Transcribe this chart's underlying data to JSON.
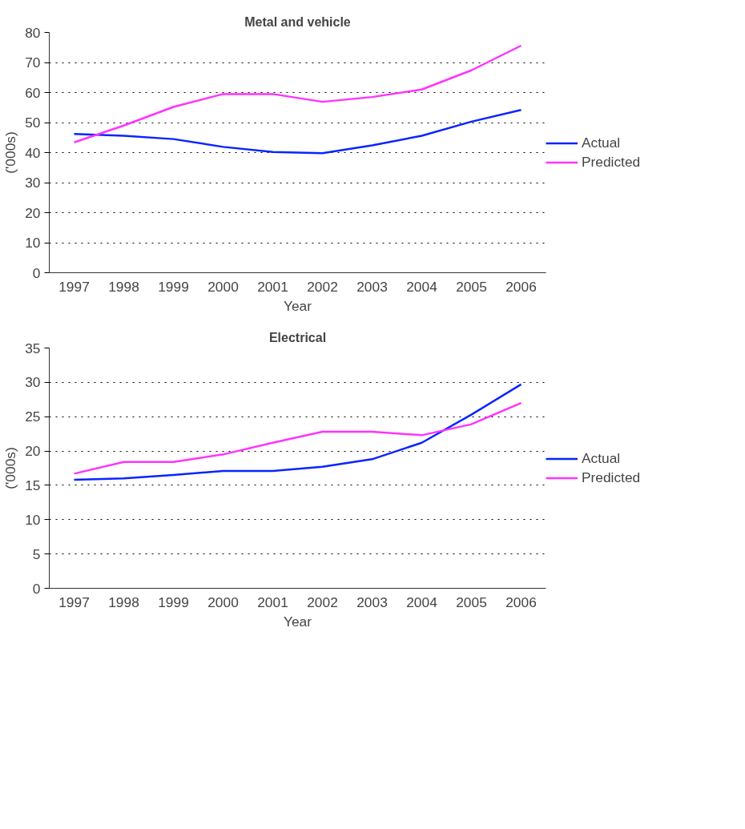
{
  "chart_data": [
    {
      "type": "line",
      "title": "Metal and vehicle",
      "xlabel": "Year",
      "ylabel": "('000s)",
      "categories": [
        "1997",
        "1998",
        "1999",
        "2000",
        "2001",
        "2002",
        "2003",
        "2004",
        "2005",
        "2006"
      ],
      "ylim": [
        0,
        80
      ],
      "yticks": [
        0,
        10,
        20,
        30,
        40,
        50,
        60,
        70,
        80
      ],
      "grid": "y",
      "legend": "right",
      "marker": "none",
      "line_style": "solid",
      "series": [
        {
          "name": "Actual",
          "color": "#0a24ff",
          "values": [
            46.2,
            45.6,
            44.5,
            41.9,
            40.2,
            39.8,
            42.4,
            45.6,
            50.3,
            54.2
          ]
        },
        {
          "name": "Predicted",
          "color": "#ff33ff",
          "values": [
            43.4,
            49.0,
            55.2,
            59.5,
            59.5,
            56.9,
            58.5,
            61.0,
            67.4,
            75.6
          ]
        }
      ]
    },
    {
      "type": "line",
      "title": "Electrical",
      "xlabel": "Year",
      "ylabel": "('000s)",
      "categories": [
        "1997",
        "1998",
        "1999",
        "2000",
        "2001",
        "2002",
        "2003",
        "2004",
        "2005",
        "2006"
      ],
      "ylim": [
        0,
        35
      ],
      "yticks": [
        0,
        5,
        10,
        15,
        20,
        25,
        30,
        35
      ],
      "grid": "y",
      "legend": "right",
      "marker": "none",
      "line_style": "solid",
      "series": [
        {
          "name": "Actual",
          "color": "#0a24ff",
          "values": [
            15.8,
            16.0,
            16.5,
            17.1,
            17.1,
            17.7,
            18.8,
            21.2,
            25.3,
            29.7
          ]
        },
        {
          "name": "Predicted",
          "color": "#ff33ff",
          "values": [
            16.7,
            18.4,
            18.4,
            19.5,
            21.2,
            22.8,
            22.8,
            22.3,
            23.9,
            27.0
          ]
        }
      ]
    }
  ]
}
